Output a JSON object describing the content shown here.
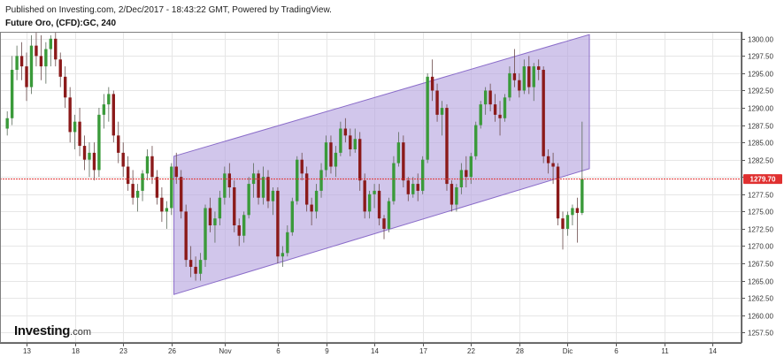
{
  "header": {
    "published": "Published on Investing.com, 2/Dec/2017 - 18:43:22 GMT, Powered by TradingView.",
    "symbol": "Future Oro, (CFD):GC, 240"
  },
  "logo": {
    "brand": "Investing",
    "suffix": ".com"
  },
  "colors": {
    "up": "#3a9a3a",
    "down": "#8b1a1a",
    "channel_fill": "#b9a8e0",
    "channel_line": "#8a6cc9",
    "price_line": "#e03030",
    "price_tag": "#e03030"
  },
  "chart_data": {
    "type": "candlestick",
    "y_axis": {
      "ylim": [
        1256.0,
        1301.0
      ],
      "ticks": [
        "1257.50",
        "1260.00",
        "1262.50",
        "1265.00",
        "1267.50",
        "1270.00",
        "1272.50",
        "1275.00",
        "1277.50",
        "1280.00",
        "1282.50",
        "1285.00",
        "1287.50",
        "1290.00",
        "1292.50",
        "1295.00",
        "1297.50",
        "1300.00"
      ]
    },
    "x_axis": {
      "ticks": [
        {
          "label": "13",
          "i": 4
        },
        {
          "label": "18",
          "i": 14
        },
        {
          "label": "23",
          "i": 24
        },
        {
          "label": "26",
          "i": 34
        },
        {
          "label": "Nov",
          "i": 45
        },
        {
          "label": "6",
          "i": 56
        },
        {
          "label": "9",
          "i": 66
        },
        {
          "label": "14",
          "i": 76
        },
        {
          "label": "17",
          "i": 86
        },
        {
          "label": "22",
          "i": 96
        },
        {
          "label": "28",
          "i": 106
        },
        {
          "label": "Dic",
          "i": 116
        },
        {
          "label": "6",
          "i": 126
        },
        {
          "label": "11",
          "i": 136
        },
        {
          "label": "14",
          "i": 146
        }
      ],
      "index_range": [
        -1.5,
        152
      ]
    },
    "last_price": 1279.7,
    "last_price_label": "1279.70",
    "channel": {
      "upper": [
        {
          "i": 34.5,
          "y": 1283.0
        },
        {
          "i": 120.5,
          "y": 1300.6
        }
      ],
      "lower": [
        {
          "i": 34.5,
          "y": 1263.0
        },
        {
          "i": 120.5,
          "y": 1281.2
        }
      ]
    },
    "candles": [
      [
        1287,
        1289.5,
        1286,
        1288.5
      ],
      [
        1288.5,
        1297.5,
        1287.5,
        1295.5
      ],
      [
        1295.5,
        1299,
        1294,
        1297.5
      ],
      [
        1297.5,
        1299.5,
        1294,
        1296
      ],
      [
        1296,
        1298,
        1291,
        1293
      ],
      [
        1293,
        1300.5,
        1292,
        1299
      ],
      [
        1299,
        1301,
        1296,
        1297.5
      ],
      [
        1297.5,
        1300.5,
        1294,
        1296
      ],
      [
        1296,
        1299.5,
        1293.5,
        1298.5
      ],
      [
        1298.5,
        1300.5,
        1296,
        1300
      ],
      [
        1300,
        1303,
        1296,
        1297
      ],
      [
        1297,
        1298,
        1293,
        1294.5
      ],
      [
        1294.5,
        1296,
        1290,
        1291.5
      ],
      [
        1291.5,
        1293,
        1285,
        1286.5
      ],
      [
        1286.5,
        1289,
        1284,
        1288
      ],
      [
        1288,
        1290,
        1283,
        1284.5
      ],
      [
        1284.5,
        1286,
        1281,
        1282.5
      ],
      [
        1282.5,
        1285,
        1280,
        1283.5
      ],
      [
        1283.5,
        1285,
        1279.5,
        1281
      ],
      [
        1281,
        1290,
        1280,
        1289
      ],
      [
        1289,
        1292,
        1287,
        1290.5
      ],
      [
        1290.5,
        1293,
        1288,
        1292
      ],
      [
        1292,
        1292.5,
        1285,
        1286
      ],
      [
        1286,
        1288,
        1282,
        1283.5
      ],
      [
        1283.5,
        1285,
        1280,
        1281.5
      ],
      [
        1281.5,
        1283,
        1278,
        1279
      ],
      [
        1279,
        1281,
        1276,
        1277
      ],
      [
        1277,
        1279,
        1275,
        1278
      ],
      [
        1278,
        1281,
        1276.5,
        1280.5
      ],
      [
        1280.5,
        1284,
        1279.5,
        1283
      ],
      [
        1283,
        1284.5,
        1279,
        1280
      ],
      [
        1280,
        1281,
        1276,
        1277
      ],
      [
        1277,
        1278.5,
        1273.5,
        1275
      ],
      [
        1275,
        1276.5,
        1272.5,
        1275.5
      ],
      [
        1275.5,
        1282,
        1274.5,
        1281.5
      ],
      [
        1281.5,
        1283.5,
        1279,
        1280
      ],
      [
        1280,
        1281,
        1274,
        1275
      ],
      [
        1275,
        1276,
        1267,
        1268
      ],
      [
        1268,
        1270,
        1265.5,
        1267
      ],
      [
        1267,
        1268.5,
        1265,
        1266
      ],
      [
        1266,
        1269,
        1265,
        1268
      ],
      [
        1268,
        1276,
        1267,
        1275.5
      ],
      [
        1275.5,
        1277,
        1272,
        1273
      ],
      [
        1273,
        1275,
        1270.5,
        1274
      ],
      [
        1274,
        1278,
        1273,
        1277
      ],
      [
        1277,
        1281.5,
        1276,
        1280.5
      ],
      [
        1280.5,
        1282,
        1277,
        1278.5
      ],
      [
        1278.5,
        1279.5,
        1272,
        1273
      ],
      [
        1273,
        1274,
        1270,
        1271.5
      ],
      [
        1271.5,
        1275,
        1270.5,
        1274.5
      ],
      [
        1274.5,
        1280,
        1274,
        1279
      ],
      [
        1279,
        1282,
        1277,
        1280.5
      ],
      [
        1280.5,
        1281,
        1276,
        1277
      ],
      [
        1277,
        1281.5,
        1276,
        1280
      ],
      [
        1280,
        1281,
        1275.5,
        1276.5
      ],
      [
        1276.5,
        1278.5,
        1274.5,
        1278
      ],
      [
        1278,
        1278.5,
        1267.5,
        1268.5
      ],
      [
        1268.5,
        1270,
        1267,
        1269
      ],
      [
        1269,
        1273,
        1268.5,
        1272
      ],
      [
        1272,
        1277,
        1271.5,
        1276.5
      ],
      [
        1276.5,
        1283,
        1276,
        1282.5
      ],
      [
        1282.5,
        1283.5,
        1279.5,
        1280.5
      ],
      [
        1280.5,
        1281.5,
        1275,
        1276
      ],
      [
        1276,
        1277,
        1273,
        1275
      ],
      [
        1275,
        1279,
        1274,
        1278
      ],
      [
        1278,
        1282,
        1277,
        1281
      ],
      [
        1281,
        1286,
        1280,
        1285
      ],
      [
        1285,
        1286,
        1280.5,
        1281.5
      ],
      [
        1281.5,
        1284.5,
        1280,
        1283.5
      ],
      [
        1283.5,
        1288,
        1283,
        1287
      ],
      [
        1287,
        1288.5,
        1285,
        1286
      ],
      [
        1286,
        1287,
        1283,
        1284
      ],
      [
        1284,
        1287,
        1283.5,
        1285.5
      ],
      [
        1285.5,
        1286.5,
        1278,
        1279.5
      ],
      [
        1279.5,
        1280.5,
        1274,
        1275
      ],
      [
        1275,
        1278,
        1274,
        1277.5
      ],
      [
        1277.5,
        1279,
        1275.5,
        1278
      ],
      [
        1278,
        1279,
        1273,
        1274
      ],
      [
        1274,
        1274.5,
        1271,
        1272.5
      ],
      [
        1272.5,
        1277,
        1272,
        1276.5
      ],
      [
        1276.5,
        1283,
        1276,
        1282
      ],
      [
        1282,
        1286.5,
        1281.5,
        1285
      ],
      [
        1285,
        1286,
        1278.5,
        1279.5
      ],
      [
        1279.5,
        1280,
        1276.5,
        1277.5
      ],
      [
        1277.5,
        1280,
        1277,
        1279
      ],
      [
        1279,
        1280.5,
        1276.5,
        1278
      ],
      [
        1278,
        1283,
        1277.5,
        1282.5
      ],
      [
        1282.5,
        1295,
        1282,
        1294.5
      ],
      [
        1294.5,
        1297,
        1291,
        1292.5
      ],
      [
        1292.5,
        1293.5,
        1288,
        1289
      ],
      [
        1289,
        1291,
        1286,
        1290
      ],
      [
        1290,
        1290.5,
        1278,
        1279
      ],
      [
        1279,
        1279.5,
        1275,
        1276
      ],
      [
        1276,
        1279,
        1275,
        1278.5
      ],
      [
        1278.5,
        1282,
        1277.5,
        1281
      ],
      [
        1281,
        1283,
        1278.5,
        1280
      ],
      [
        1280,
        1283.5,
        1279,
        1283
      ],
      [
        1283,
        1288,
        1282.5,
        1287.5
      ],
      [
        1287.5,
        1291,
        1287,
        1290.5
      ],
      [
        1290.5,
        1293,
        1289,
        1292.5
      ],
      [
        1292.5,
        1293.5,
        1289.5,
        1290.5
      ],
      [
        1290.5,
        1292,
        1288,
        1289
      ],
      [
        1289,
        1291,
        1286,
        1288.5
      ],
      [
        1288.5,
        1292,
        1288,
        1291.5
      ],
      [
        1291.5,
        1296,
        1291,
        1295
      ],
      [
        1295,
        1298.5,
        1293,
        1294
      ],
      [
        1294,
        1295,
        1291.5,
        1292.5
      ],
      [
        1292.5,
        1297,
        1292,
        1296
      ],
      [
        1296,
        1297.5,
        1292,
        1293
      ],
      [
        1293,
        1296.5,
        1291,
        1296
      ],
      [
        1296,
        1297,
        1294,
        1295.5
      ],
      [
        1295.5,
        1296,
        1282,
        1283
      ],
      [
        1283,
        1284,
        1280.5,
        1282
      ],
      [
        1282,
        1283.5,
        1279,
        1281.5
      ],
      [
        1281.5,
        1282,
        1273,
        1274
      ],
      [
        1274,
        1275,
        1269.5,
        1272.5
      ],
      [
        1272.5,
        1275,
        1271.5,
        1274.5
      ],
      [
        1274.5,
        1276,
        1273,
        1275.5
      ],
      [
        1275.5,
        1277,
        1270.5,
        1274.8
      ],
      [
        1274.8,
        1288,
        1274.5,
        1279.7
      ]
    ]
  }
}
